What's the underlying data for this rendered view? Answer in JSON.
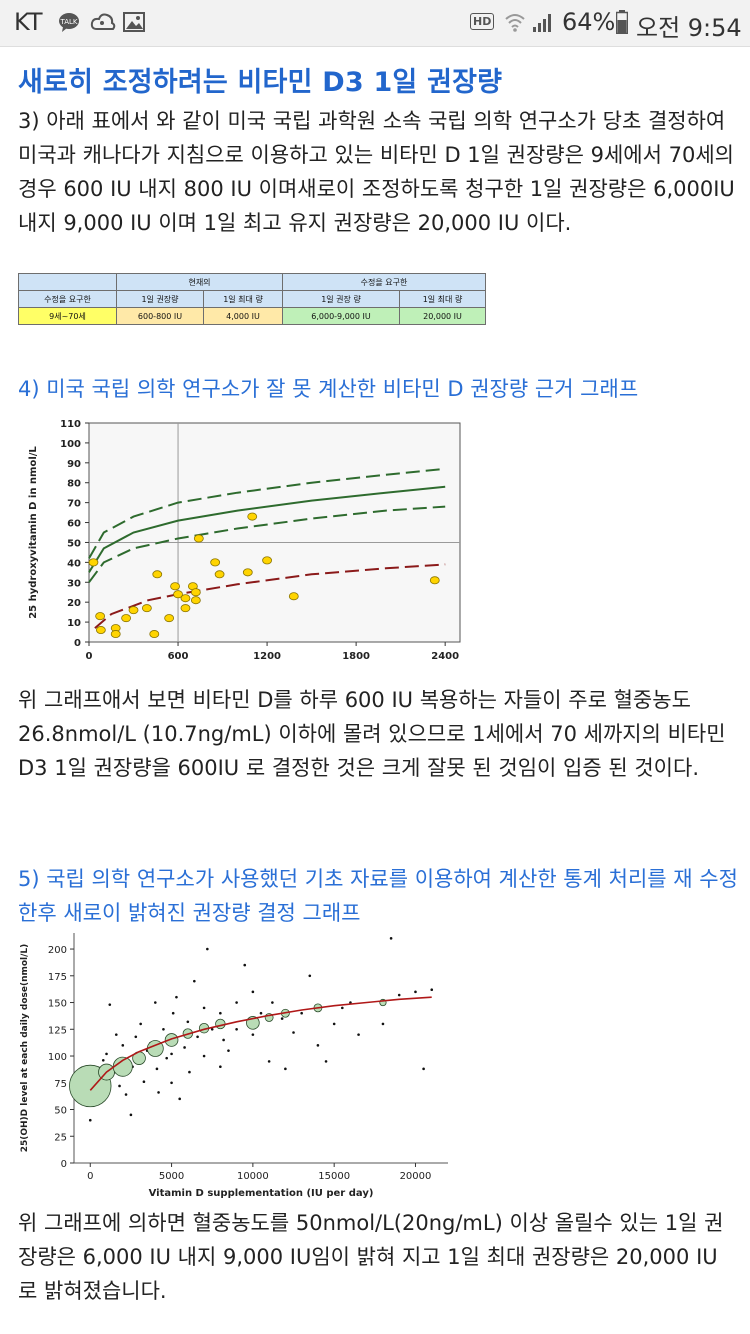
{
  "status_bar": {
    "carrier": "KT",
    "left_icons": [
      "talk-icon",
      "cloud-icon",
      "gallery-icon"
    ],
    "hd_badge": "HD",
    "battery": "64%",
    "time": "오전 9:54",
    "signal_icons": [
      "wifi-icon",
      "cellular-signal-icon",
      "battery-icon"
    ]
  },
  "article": {
    "heading": "새로히 조정하려는 비타민 D3 1일 권장량",
    "paragraph1": "3) 아래 표에서 와 같이 미국 국립 과학원 소속 국립 의학 연구소가 당초 결정하여 미국과 캐나다가 지침으로 이용하고 있는 비타민 D 1일 권장량은 9세에서 70세의 경우 600 IU 내지 800 IU 이며새로이 조정하도록 청구한 1일 권장량은 6,000IU 내지 9,000 IU 이며 1일 최고 유지 권장량은 20,000 IU 이다.",
    "section4_title": "4) 미국 국립 의학 연구소가 잘 못 계산한 비타민 D 권장량 근거 그래프",
    "paragraph2": "위 그래프애서 보면 비타민 D를 하루 600 IU 복용하는 자들이 주로 혈중농도 26.8nmol/L (10.7ng/mL) 이하에 몰려 있으므로 1세에서 70 세까지의 비타민 D3 1일 권장량을 600IU 로 결정한 것은 크게 잘못 된 것임이 입증 된 것이다.",
    "section5_title": "5) 국립 의학 연구소가 사용했던 기초 자료를 이용하여 계산한 통계 처리를 재 수정한후 새로이 밝혀진 권장량 결정 그래프",
    "paragraph3": "위 그래프에 의하면 혈중농도를 50nmol/L(20ng/mL) 이상 올릴수 있는 1일 권장량은 6,000 IU 내지 9,000 IU임이 밝혀 지고 1일 최대 권장량은 20,000 IU 로 밝혀졌습니다."
  },
  "table": {
    "header_current": "현재의",
    "header_requested": "수정을 요구한",
    "col_age": "수정을 요구한",
    "col_daily": "1일 권장량",
    "col_max": "1일 최대 량",
    "col_new_daily": "1일 권장 량",
    "col_new_max": "1일 최대 량",
    "row_age": "9세~70세",
    "row_current_daily": "600-800 IU",
    "row_current_max": "4,000 IU",
    "row_new_daily": "6,000-9,000 IU",
    "row_new_max": "20,000 IU"
  },
  "chart_data": [
    {
      "type": "scatter",
      "title": "",
      "xlabel": "",
      "ylabel": "25 hydroxyvitamin D in nmol/L",
      "xlim": [
        0,
        2500
      ],
      "ylim": [
        0,
        110
      ],
      "x_ticks": [
        "0",
        "600",
        "1200",
        "1800",
        "2400"
      ],
      "y_ticks": [
        "0",
        "10",
        "20",
        "30",
        "40",
        "50",
        "60",
        "70",
        "80",
        "90",
        "100",
        "110"
      ],
      "reference_lines": {
        "x": 600,
        "y": 50
      },
      "points": [
        {
          "x": 30,
          "y": 40
        },
        {
          "x": 75,
          "y": 13
        },
        {
          "x": 80,
          "y": 6
        },
        {
          "x": 180,
          "y": 7
        },
        {
          "x": 180,
          "y": 4
        },
        {
          "x": 250,
          "y": 12
        },
        {
          "x": 300,
          "y": 16
        },
        {
          "x": 390,
          "y": 17
        },
        {
          "x": 440,
          "y": 4
        },
        {
          "x": 460,
          "y": 34
        },
        {
          "x": 540,
          "y": 12
        },
        {
          "x": 580,
          "y": 28
        },
        {
          "x": 600,
          "y": 24
        },
        {
          "x": 650,
          "y": 22
        },
        {
          "x": 650,
          "y": 17
        },
        {
          "x": 700,
          "y": 28
        },
        {
          "x": 720,
          "y": 25
        },
        {
          "x": 720,
          "y": 21
        },
        {
          "x": 740,
          "y": 52
        },
        {
          "x": 850,
          "y": 40
        },
        {
          "x": 880,
          "y": 34
        },
        {
          "x": 1070,
          "y": 35
        },
        {
          "x": 1100,
          "y": 63
        },
        {
          "x": 1200,
          "y": 41
        },
        {
          "x": 1380,
          "y": 23
        },
        {
          "x": 2330,
          "y": 31
        }
      ],
      "series": [
        {
          "name": "",
          "style": "dashed",
          "color": "#2e6b2e",
          "points": [
            [
              0,
              42
            ],
            [
              100,
              55
            ],
            [
              300,
              63
            ],
            [
              600,
              70
            ],
            [
              1000,
              75
            ],
            [
              1500,
              80
            ],
            [
              2000,
              84
            ],
            [
              2400,
              87
            ]
          ]
        },
        {
          "name": "",
          "style": "solid",
          "color": "#2e6b2e",
          "points": [
            [
              0,
              35
            ],
            [
              100,
              47
            ],
            [
              300,
              55
            ],
            [
              600,
              61
            ],
            [
              1000,
              66
            ],
            [
              1500,
              71
            ],
            [
              2000,
              75
            ],
            [
              2400,
              78
            ]
          ]
        },
        {
          "name": "",
          "style": "dashed",
          "color": "#2e6b2e",
          "points": [
            [
              0,
              30
            ],
            [
              100,
              40
            ],
            [
              300,
              47
            ],
            [
              600,
              52
            ],
            [
              1000,
              57
            ],
            [
              1500,
              62
            ],
            [
              2000,
              66
            ],
            [
              2400,
              68
            ]
          ]
        },
        {
          "name": "",
          "style": "dashed",
          "color": "#8b1a1a",
          "points": [
            [
              40,
              7
            ],
            [
              150,
              14
            ],
            [
              400,
              21
            ],
            [
              600,
              24
            ],
            [
              1000,
              29
            ],
            [
              1500,
              34
            ],
            [
              2000,
              37
            ],
            [
              2400,
              39
            ]
          ]
        }
      ]
    },
    {
      "type": "scatter",
      "title": "",
      "xlabel": "Vitamin D supplementation (IU per day)",
      "ylabel": "25(OH)D level at each daily dose(nmol/L)",
      "xlim": [
        -1000,
        22000
      ],
      "ylim": [
        0,
        215
      ],
      "x_ticks": [
        "0",
        "5000",
        "10000",
        "15000",
        "20000"
      ],
      "y_ticks": [
        "0",
        "25",
        "50",
        "75",
        "100",
        "125",
        "150",
        "175",
        "200"
      ],
      "fit_curve": [
        [
          0,
          68
        ],
        [
          1000,
          85
        ],
        [
          2000,
          96
        ],
        [
          3000,
          104
        ],
        [
          4000,
          110
        ],
        [
          5000,
          116
        ],
        [
          7000,
          125
        ],
        [
          9000,
          132
        ],
        [
          11000,
          138
        ],
        [
          13000,
          143
        ],
        [
          15000,
          147
        ],
        [
          17000,
          150
        ],
        [
          19000,
          153
        ],
        [
          21000,
          155
        ]
      ],
      "bubbles": [
        {
          "x": 0,
          "y": 72,
          "r": 13
        },
        {
          "x": 1000,
          "y": 85,
          "r": 5
        },
        {
          "x": 2000,
          "y": 90,
          "r": 6
        },
        {
          "x": 3000,
          "y": 98,
          "r": 4
        },
        {
          "x": 4000,
          "y": 107,
          "r": 5
        },
        {
          "x": 5000,
          "y": 115,
          "r": 4
        },
        {
          "x": 6000,
          "y": 121,
          "r": 3
        },
        {
          "x": 7000,
          "y": 126,
          "r": 3
        },
        {
          "x": 8000,
          "y": 130,
          "r": 3
        },
        {
          "x": 10000,
          "y": 131,
          "r": 4
        },
        {
          "x": 11000,
          "y": 136,
          "r": 2.5
        },
        {
          "x": 12000,
          "y": 140,
          "r": 2.5
        },
        {
          "x": 14000,
          "y": 145,
          "r": 2.5
        },
        {
          "x": 18000,
          "y": 150,
          "r": 2
        }
      ],
      "points": [
        [
          0,
          40
        ],
        [
          0,
          55
        ],
        [
          300,
          62
        ],
        [
          500,
          78
        ],
        [
          800,
          96
        ],
        [
          1000,
          70
        ],
        [
          1000,
          102
        ],
        [
          1200,
          148
        ],
        [
          1500,
          85
        ],
        [
          1600,
          120
        ],
        [
          1800,
          72
        ],
        [
          2000,
          110
        ],
        [
          2200,
          64
        ],
        [
          2500,
          45
        ],
        [
          2600,
          90
        ],
        [
          2800,
          118
        ],
        [
          3000,
          95
        ],
        [
          3100,
          130
        ],
        [
          3300,
          76
        ],
        [
          3500,
          105
        ],
        [
          3700,
          112
        ],
        [
          4000,
          150
        ],
        [
          4100,
          88
        ],
        [
          4200,
          66
        ],
        [
          4500,
          125
        ],
        [
          4700,
          98
        ],
        [
          5000,
          75
        ],
        [
          5000,
          102
        ],
        [
          5100,
          140
        ],
        [
          5300,
          155
        ],
        [
          5500,
          60
        ],
        [
          5800,
          108
        ],
        [
          6000,
          132
        ],
        [
          6100,
          85
        ],
        [
          6400,
          170
        ],
        [
          6600,
          118
        ],
        [
          7000,
          100
        ],
        [
          7000,
          145
        ],
        [
          7200,
          200
        ],
        [
          7500,
          125
        ],
        [
          8000,
          90
        ],
        [
          8000,
          140
        ],
        [
          8200,
          115
        ],
        [
          8500,
          105
        ],
        [
          9000,
          150
        ],
        [
          9000,
          125
        ],
        [
          9500,
          185
        ],
        [
          10000,
          120
        ],
        [
          10000,
          160
        ],
        [
          10500,
          140
        ],
        [
          11000,
          95
        ],
        [
          11200,
          150
        ],
        [
          11800,
          135
        ],
        [
          12000,
          88
        ],
        [
          12500,
          122
        ],
        [
          13000,
          140
        ],
        [
          13500,
          175
        ],
        [
          14000,
          110
        ],
        [
          14500,
          95
        ],
        [
          15000,
          130
        ],
        [
          15500,
          145
        ],
        [
          16000,
          150
        ],
        [
          16500,
          120
        ],
        [
          18000,
          130
        ],
        [
          18500,
          210
        ],
        [
          19000,
          157
        ],
        [
          20000,
          160
        ],
        [
          20500,
          88
        ],
        [
          21000,
          162
        ]
      ]
    }
  ]
}
